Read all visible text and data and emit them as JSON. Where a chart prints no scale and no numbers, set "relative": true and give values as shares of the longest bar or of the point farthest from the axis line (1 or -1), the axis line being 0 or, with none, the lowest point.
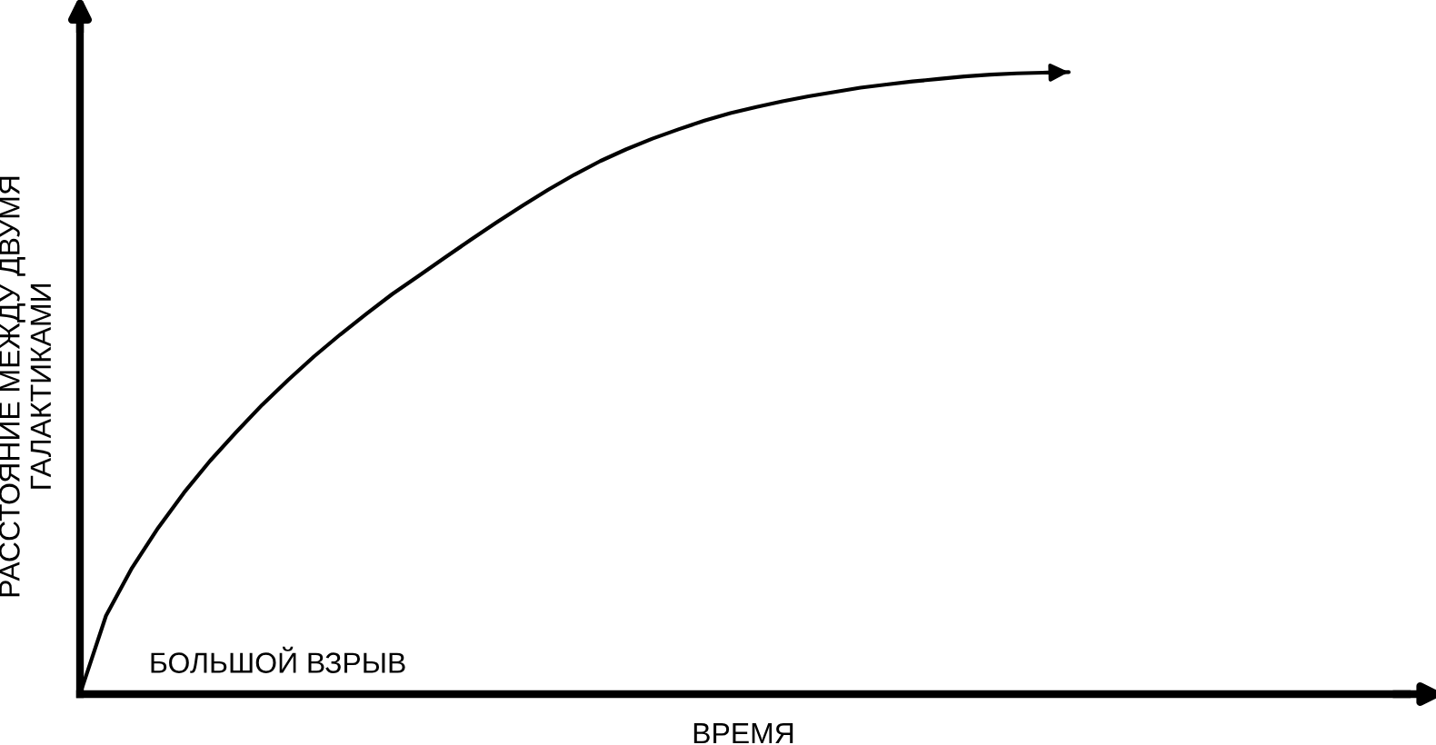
{
  "chart_data": {
    "type": "line",
    "relative": true,
    "xlabel": "ВРЕМЯ",
    "ylabel": "РАССТОЯНИЕ МЕЖДУ ДВУМЯ\nГАЛАКТИКАМИ",
    "annotations": [
      "БОЛЬШОЙ ВЗРЫВ"
    ],
    "categories": [
      null,
      null,
      null,
      null,
      null,
      null,
      null,
      null,
      null,
      null,
      null,
      null,
      null,
      null,
      null,
      null,
      null,
      null,
      null,
      null,
      null,
      null,
      null,
      null,
      null,
      null,
      null,
      null,
      null,
      null,
      null,
      null,
      null,
      null,
      null,
      null,
      null,
      null,
      null,
      null,
      null,
      null,
      null,
      null,
      null,
      null,
      null,
      null,
      null,
      null,
      null,
      null
    ],
    "series": [
      {
        "color": "#000000",
        "values": [
          0,
          0.126,
          0.203,
          0.267,
          0.324,
          0.375,
          0.421,
          0.465,
          0.505,
          0.543,
          0.578,
          0.611,
          0.643,
          0.672,
          0.701,
          0.73,
          0.758,
          0.785,
          0.811,
          0.835,
          0.857,
          0.876,
          0.893,
          0.908,
          0.922,
          0.934,
          0.944,
          0.953,
          0.961,
          0.968,
          0.975,
          0.98,
          0.985,
          0.989,
          0.993,
          0.996,
          0.998,
          0.999,
          1,
          null,
          null,
          null,
          null,
          null,
          null,
          null,
          null,
          null,
          null,
          null,
          null,
          null
        ]
      }
    ]
  }
}
